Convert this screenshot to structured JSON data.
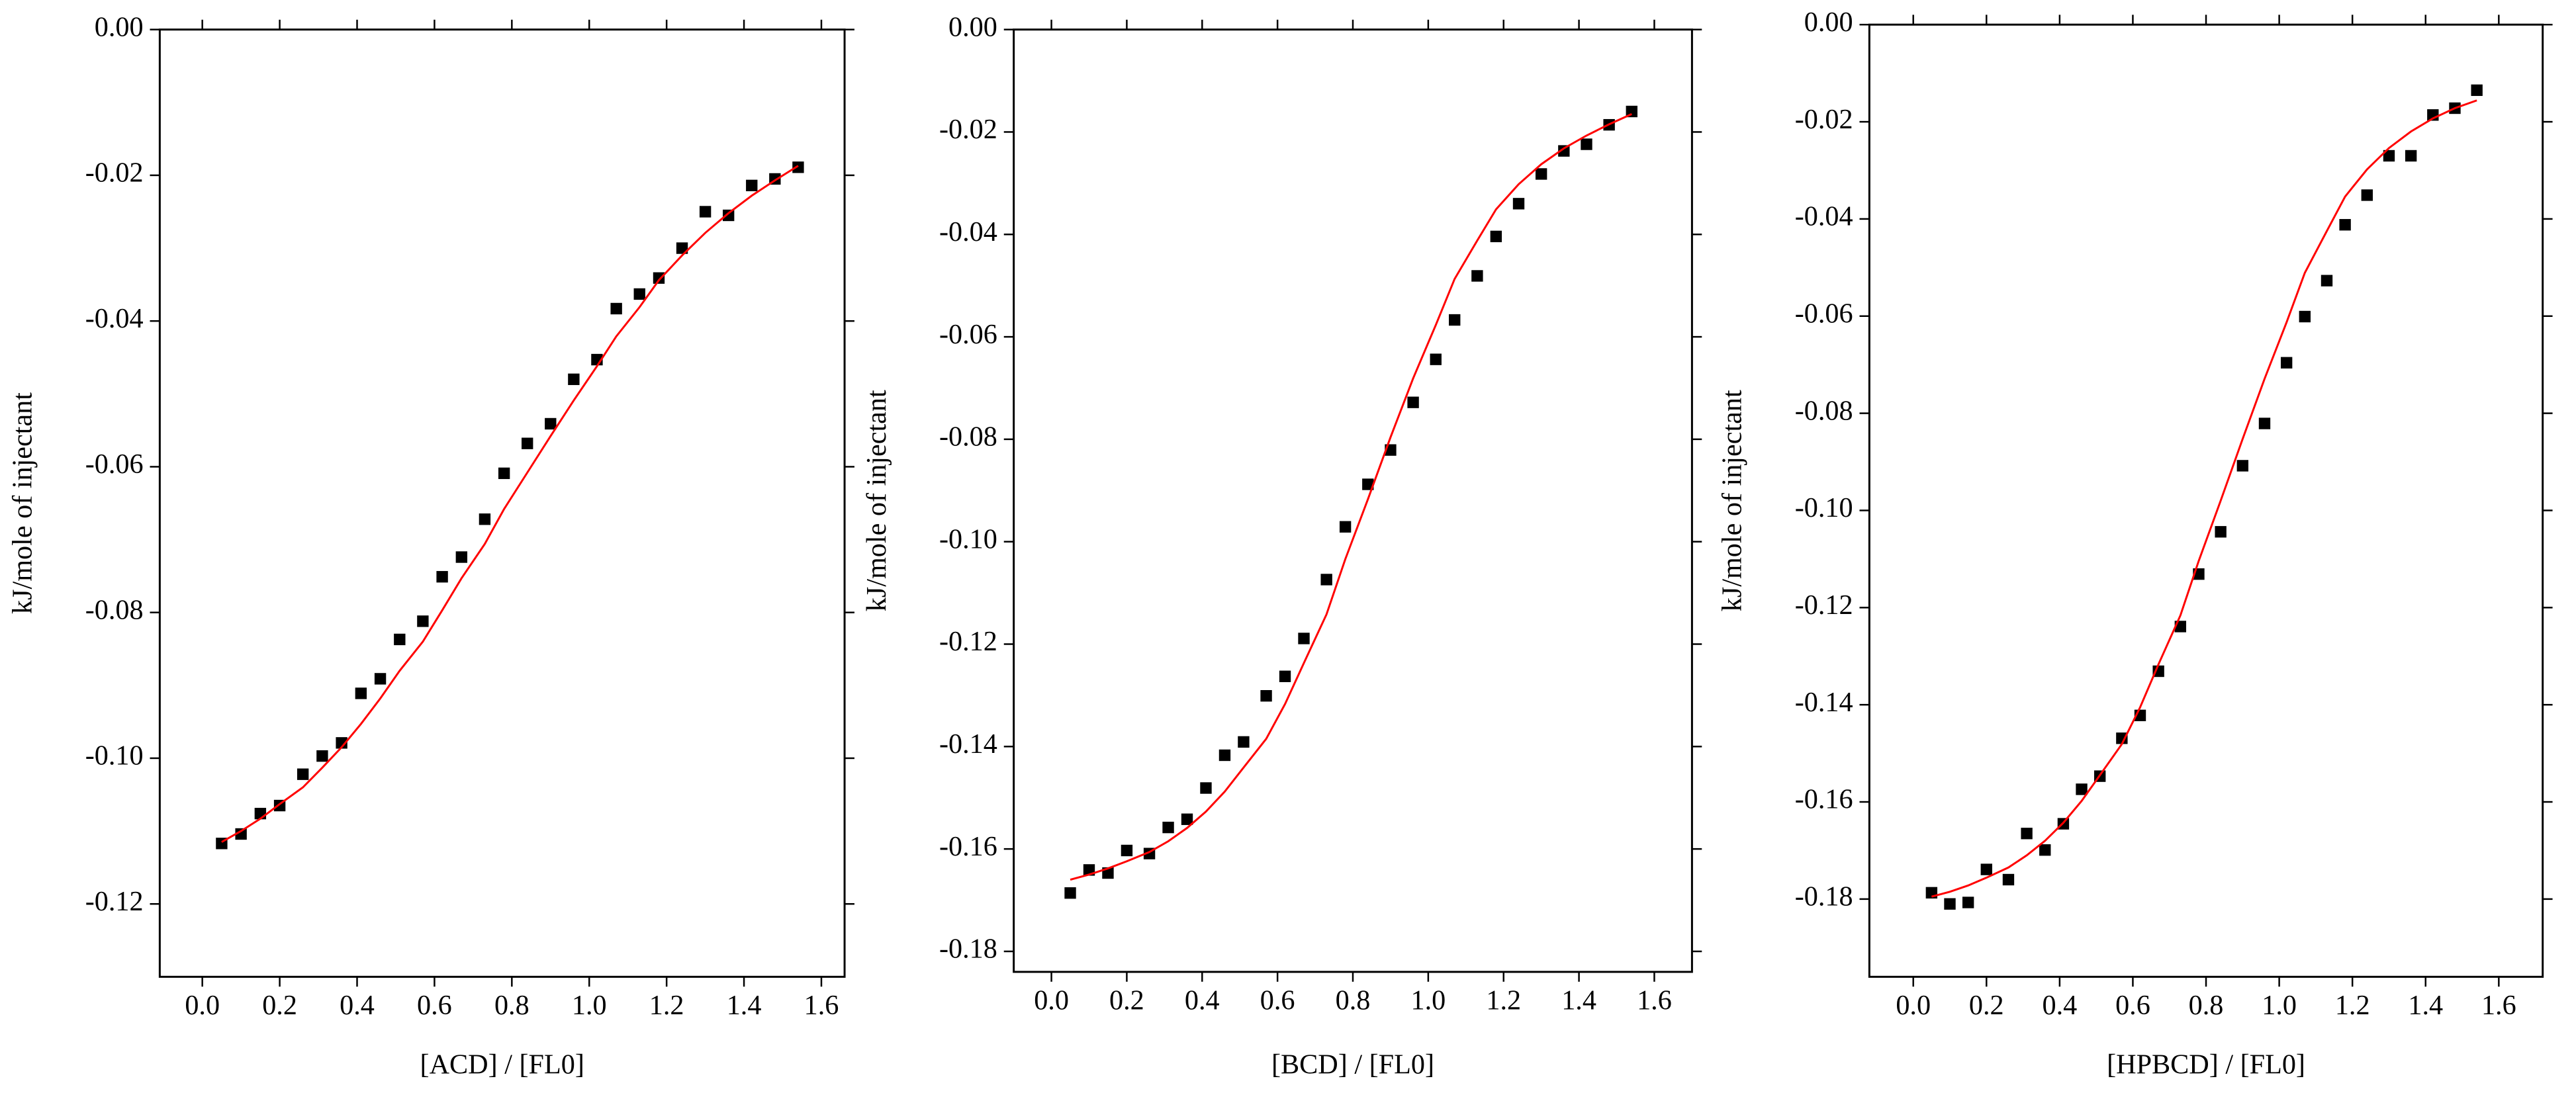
{
  "chart_data": [
    {
      "type": "scatter",
      "x_label": "[ACD] / [FL0]",
      "y_label": "kJ/mole of injectant",
      "x": [
        0.05,
        0.1,
        0.15,
        0.2,
        0.26,
        0.31,
        0.36,
        0.41,
        0.46,
        0.51,
        0.57,
        0.62,
        0.67,
        0.73,
        0.78,
        0.84,
        0.9,
        0.96,
        1.02,
        1.07,
        1.13,
        1.18,
        1.24,
        1.3,
        1.36,
        1.42,
        1.48,
        1.54
      ],
      "series": [
        {
          "color": "#000000",
          "marker": "square",
          "values": [
            -0.1117,
            -0.1104,
            -0.1076,
            -0.1065,
            -0.1022,
            -0.0997,
            -0.0979,
            -0.0911,
            -0.0891,
            -0.0837,
            -0.0812,
            -0.0751,
            -0.0724,
            -0.0672,
            -0.0609,
            -0.0568,
            -0.0541,
            -0.048,
            -0.0453,
            -0.0383,
            -0.0363,
            -0.0341,
            -0.03,
            -0.025,
            -0.0255,
            -0.0214,
            -0.0205,
            -0.0189
          ]
        },
        {
          "color": "#ff0000",
          "type": "line",
          "values": [
            -0.1115,
            -0.11,
            -0.1083,
            -0.1063,
            -0.104,
            -0.1013,
            -0.0985,
            -0.0953,
            -0.0918,
            -0.088,
            -0.084,
            -0.0797,
            -0.0753,
            -0.0706,
            -0.0658,
            -0.0608,
            -0.0558,
            -0.0509,
            -0.0462,
            -0.0421,
            -0.0381,
            -0.0344,
            -0.031,
            -0.0279,
            -0.0252,
            -0.0228,
            -0.0207,
            -0.0187
          ]
        }
      ],
      "xlim": [
        -0.11,
        1.66
      ],
      "ylim": [
        -0.13,
        0
      ],
      "xticks": [
        {
          "value": 0,
          "label": "0.0"
        },
        0.2,
        0.4,
        0.6,
        0.8,
        {
          "value": 1,
          "label": "1.0"
        },
        1.2,
        1.4,
        1.6
      ],
      "yticks": [
        {
          "value": 0,
          "label": "0.00"
        },
        -0.02,
        -0.04,
        -0.06,
        -0.08,
        {
          "value": -0.1,
          "label": "-0.10"
        },
        -0.12
      ]
    },
    {
      "type": "scatter",
      "x_label": "[BCD] / [FL0]",
      "y_label": "kJ/mole of injectant",
      "x": [
        0.05,
        0.1,
        0.15,
        0.2,
        0.26,
        0.31,
        0.36,
        0.41,
        0.46,
        0.51,
        0.57,
        0.62,
        0.67,
        0.73,
        0.78,
        0.84,
        0.9,
        0.96,
        1.02,
        1.07,
        1.13,
        1.18,
        1.24,
        1.3,
        1.36,
        1.42,
        1.48,
        1.54
      ],
      "series": [
        {
          "color": "#000000",
          "marker": "square",
          "values": [
            -0.1686,
            -0.1641,
            -0.1647,
            -0.1603,
            -0.1609,
            -0.1558,
            -0.1542,
            -0.1481,
            -0.1417,
            -0.1391,
            -0.1301,
            -0.1263,
            -0.1189,
            -0.1074,
            -0.0971,
            -0.0888,
            -0.0821,
            -0.0728,
            -0.0644,
            -0.0567,
            -0.0481,
            -0.0404,
            -0.034,
            -0.0282,
            -0.0237,
            -0.0224,
            -0.0186,
            -0.016
          ]
        },
        {
          "color": "#ff0000",
          "type": "line",
          "values": [
            -0.166,
            -0.165,
            -0.1638,
            -0.1624,
            -0.1606,
            -0.1585,
            -0.1559,
            -0.1527,
            -0.1488,
            -0.1441,
            -0.1385,
            -0.1317,
            -0.1237,
            -0.1142,
            -0.1034,
            -0.0917,
            -0.0796,
            -0.0681,
            -0.0577,
            -0.0487,
            -0.0412,
            -0.0351,
            -0.0302,
            -0.0263,
            -0.0232,
            -0.0207,
            -0.0185,
            -0.0165
          ]
        }
      ],
      "xlim": [
        -0.1,
        1.7
      ],
      "ylim": [
        -0.184,
        0
      ],
      "xticks": [
        {
          "value": 0,
          "label": "0.0"
        },
        0.2,
        0.4,
        0.6,
        0.8,
        {
          "value": 1,
          "label": "1.0"
        },
        1.2,
        1.4,
        1.6
      ],
      "yticks": [
        {
          "value": 0,
          "label": "0.00"
        },
        -0.02,
        -0.04,
        -0.06,
        -0.08,
        {
          "value": -0.1,
          "label": "-0.10"
        },
        -0.12,
        -0.14,
        -0.16,
        -0.18
      ]
    },
    {
      "type": "scatter",
      "x_label": "[HPBCD] / [FL0]",
      "y_label": "kJ/mole of injectant",
      "x": [
        0.05,
        0.1,
        0.15,
        0.2,
        0.26,
        0.31,
        0.36,
        0.41,
        0.46,
        0.51,
        0.57,
        0.62,
        0.67,
        0.73,
        0.78,
        0.84,
        0.9,
        0.96,
        1.02,
        1.07,
        1.13,
        1.18,
        1.24,
        1.3,
        1.36,
        1.42,
        1.48,
        1.54
      ],
      "series": [
        {
          "color": "#000000",
          "marker": "square",
          "values": [
            -0.1787,
            -0.181,
            -0.1807,
            -0.1739,
            -0.176,
            -0.1665,
            -0.1699,
            -0.1645,
            -0.1574,
            -0.1547,
            -0.1469,
            -0.1422,
            -0.1331,
            -0.1239,
            -0.1131,
            -0.1044,
            -0.0908,
            -0.0821,
            -0.0696,
            -0.0601,
            -0.0527,
            -0.0412,
            -0.0351,
            -0.027,
            -0.027,
            -0.0186,
            -0.0172,
            -0.0135
          ]
        },
        {
          "color": "#ff0000",
          "type": "line",
          "values": [
            -0.1795,
            -0.1785,
            -0.1772,
            -0.1756,
            -0.1735,
            -0.171,
            -0.168,
            -0.1643,
            -0.1598,
            -0.1545,
            -0.1481,
            -0.1405,
            -0.1317,
            -0.1216,
            -0.1104,
            -0.098,
            -0.0853,
            -0.0729,
            -0.0613,
            -0.0511,
            -0.0425,
            -0.0354,
            -0.0298,
            -0.0254,
            -0.022,
            -0.0193,
            -0.0172,
            -0.0156
          ]
        }
      ],
      "xlim": [
        -0.12,
        1.72
      ],
      "ylim": [
        -0.196,
        0
      ],
      "xticks": [
        {
          "value": 0,
          "label": "0.0"
        },
        0.2,
        0.4,
        0.6,
        0.8,
        {
          "value": 1,
          "label": "1.0"
        },
        1.2,
        1.4,
        1.6
      ],
      "yticks": [
        {
          "value": 0,
          "label": "0.00"
        },
        -0.02,
        -0.04,
        -0.06,
        -0.08,
        {
          "value": -0.1,
          "label": "-0.10"
        },
        -0.12,
        -0.14,
        -0.16,
        -0.18
      ]
    }
  ]
}
